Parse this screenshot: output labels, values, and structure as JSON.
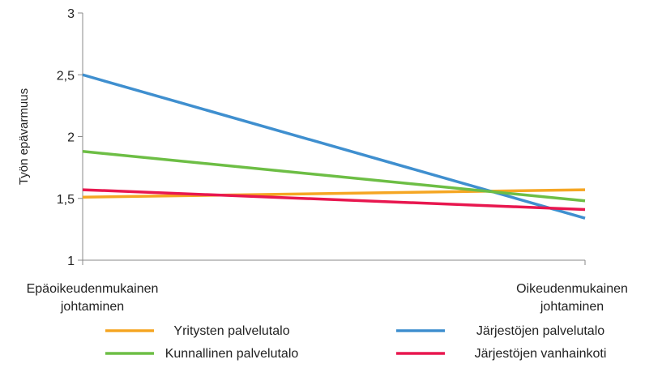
{
  "chart_data": {
    "type": "line",
    "title": "",
    "ylabel": "Työn epävarmuus",
    "xlabel": "",
    "ylim": [
      1,
      3
    ],
    "yticks": [
      1,
      1.5,
      2,
      2.5,
      3
    ],
    "ytick_labels": [
      "1",
      "1,5",
      "2",
      "2,5",
      "3"
    ],
    "categories": [
      [
        "Epäoikeudenmukainen",
        "johtaminen"
      ],
      [
        "Oikeudenmukainen",
        "johtaminen"
      ]
    ],
    "grid": false,
    "legend_position": "bottom",
    "series": [
      {
        "name": "Yritysten palvelutalo",
        "color": "#F5A623",
        "values": [
          1.51,
          1.57
        ]
      },
      {
        "name": "Järjestöjen palvelutalo",
        "color": "#3F8FCF",
        "values": [
          2.5,
          1.34
        ]
      },
      {
        "name": "Kunnallinen palvelutalo",
        "color": "#6DBE45",
        "values": [
          1.88,
          1.48
        ]
      },
      {
        "name": "Järjestöjen vanhainkoti",
        "color": "#E8174F",
        "values": [
          1.57,
          1.41
        ]
      }
    ]
  }
}
